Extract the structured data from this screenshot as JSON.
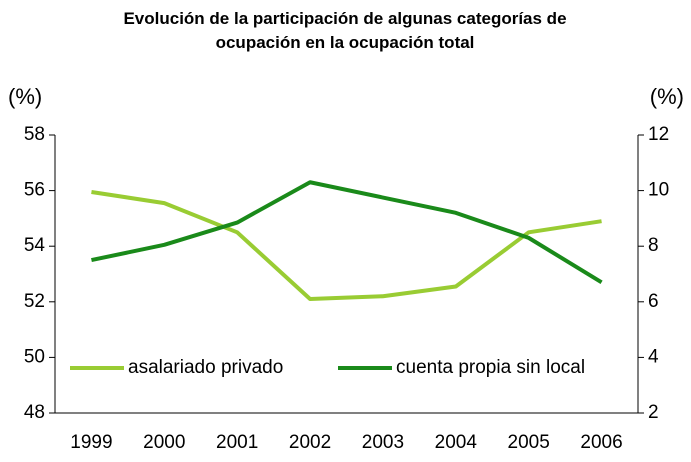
{
  "chart_data": {
    "type": "line",
    "title": "Evolución de la participación de algunas categorías de ocupación en la ocupación total",
    "y_label": "(%)",
    "y2_label": "(%)",
    "categories": [
      "1999",
      "2000",
      "2001",
      "2002",
      "2003",
      "2004",
      "2005",
      "2006"
    ],
    "series": [
      {
        "name": "asalariado privado",
        "color": "#99cc33",
        "values": [
          55.95,
          55.55,
          54.5,
          52.1,
          52.2,
          52.55,
          54.5,
          54.9
        ]
      },
      {
        "name": "cuenta propia sin local",
        "color": "#1a8a1a",
        "axis": "y2",
        "values": [
          7.5,
          8.05,
          8.85,
          10.3,
          9.75,
          9.2,
          8.3,
          6.7
        ]
      }
    ],
    "ylim": [
      48,
      58
    ],
    "yticks": [
      48,
      50,
      52,
      54,
      56,
      58
    ],
    "y2lim": [
      2,
      12
    ],
    "y2ticks": [
      2,
      4,
      6,
      8,
      10,
      12
    ]
  }
}
